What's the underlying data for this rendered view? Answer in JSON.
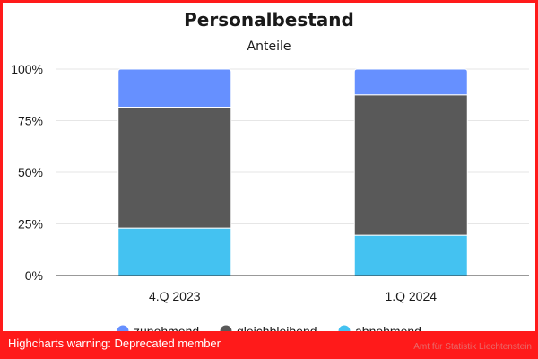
{
  "chart_data": {
    "type": "bar",
    "stacked": true,
    "percent": true,
    "title": "Personalbestand",
    "subtitle": "Anteile",
    "categories": [
      "4.Q 2023",
      "1.Q 2024"
    ],
    "series": [
      {
        "name": "zunehmend",
        "color": "#6690ff",
        "values": [
          18.5,
          12.5
        ]
      },
      {
        "name": "gleichbleibend",
        "color": "#595959",
        "values": [
          58.5,
          68.0
        ]
      },
      {
        "name": "abnehmend",
        "color": "#44c2f1",
        "values": [
          23.0,
          19.5
        ]
      }
    ],
    "ylim": [
      0,
      100
    ],
    "yticks": [
      0,
      25,
      50,
      75,
      100
    ],
    "ytick_labels": [
      "0%",
      "25%",
      "50%",
      "75%",
      "100%"
    ],
    "grid": true,
    "legend_position": "bottom"
  },
  "warning": {
    "text": "Highcharts warning: Deprecated member"
  },
  "credit": {
    "text": "Amt für Statistik Liechtenstein"
  }
}
